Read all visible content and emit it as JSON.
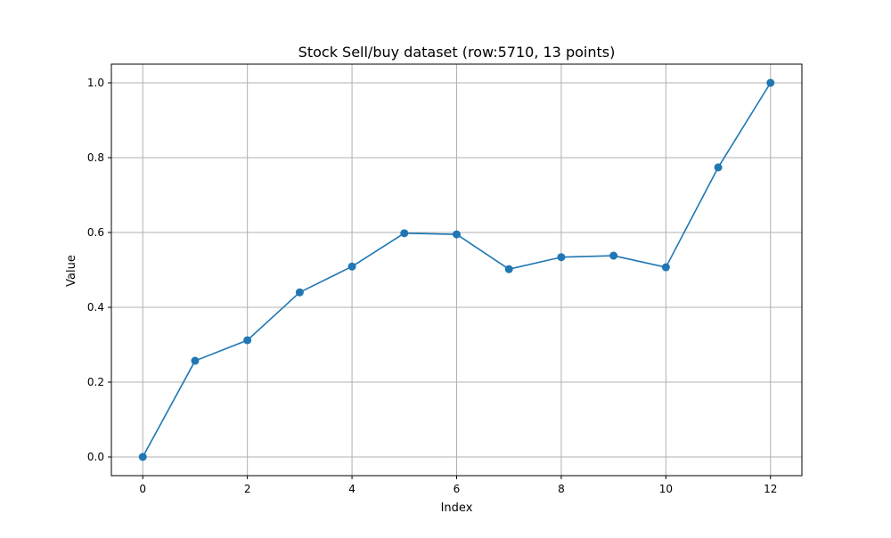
{
  "chart_data": {
    "type": "line",
    "title": "Stock Sell/buy dataset (row:5710, 13 points)",
    "xlabel": "Index",
    "ylabel": "Value",
    "x": [
      0,
      1,
      2,
      3,
      4,
      5,
      6,
      7,
      8,
      9,
      10,
      11,
      12
    ],
    "series": [
      {
        "values": [
          0.0,
          0.257,
          0.312,
          0.44,
          0.509,
          0.598,
          0.595,
          0.502,
          0.534,
          0.538,
          0.507,
          0.774,
          1.0
        ],
        "color": "#1f77b4",
        "marker": "circle"
      }
    ],
    "xlim": [
      -0.6,
      12.6
    ],
    "ylim": [
      -0.05,
      1.05
    ],
    "xticks": [
      "0",
      "2",
      "4",
      "6",
      "8",
      "10",
      "12"
    ],
    "yticks": [
      "0.0",
      "0.2",
      "0.4",
      "0.6",
      "0.8",
      "1.0"
    ],
    "grid": true,
    "grid_color": "#b0b0b0"
  }
}
